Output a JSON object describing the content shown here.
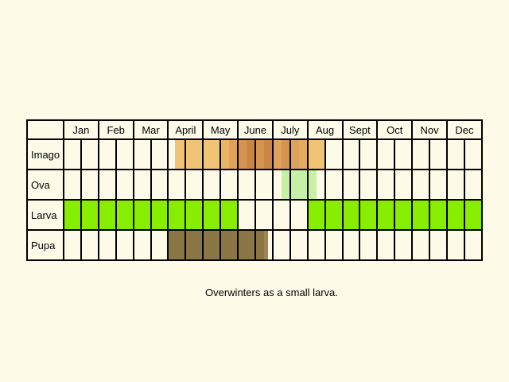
{
  "months": [
    "Jan",
    "Feb",
    "Mar",
    "April",
    "May",
    "June",
    "July",
    "Aug",
    "Sept",
    "Oct",
    "Nov",
    "Dec"
  ],
  "stages": [
    {
      "label": "Imago",
      "fills": [
        {
          "from": 6.4,
          "to": 7.0,
          "color": "#f0c474"
        },
        {
          "from": 7.0,
          "to": 9.0,
          "color": "#f0c474"
        },
        {
          "from": 9.0,
          "to": 9.5,
          "color": "#eab565"
        },
        {
          "from": 9.5,
          "to": 10.0,
          "color": "#dea25a"
        },
        {
          "from": 10.0,
          "to": 10.5,
          "color": "#d49450"
        },
        {
          "from": 10.5,
          "to": 11.0,
          "color": "#c98644"
        },
        {
          "from": 11.0,
          "to": 11.5,
          "color": "#d49450"
        },
        {
          "from": 11.5,
          "to": 12.0,
          "color": "#c98644"
        },
        {
          "from": 12.0,
          "to": 12.5,
          "color": "#dea25a"
        },
        {
          "from": 12.5,
          "to": 13.0,
          "color": "#d49450"
        },
        {
          "from": 13.0,
          "to": 13.5,
          "color": "#dea25a"
        },
        {
          "from": 13.5,
          "to": 14.0,
          "color": "#e4aa5f"
        },
        {
          "from": 14.0,
          "to": 15.0,
          "color": "#f0c474"
        }
      ]
    },
    {
      "label": "Ova",
      "fills": [
        {
          "from": 12.5,
          "to": 14.5,
          "color": "#c6f0a6"
        }
      ]
    },
    {
      "label": "Larva",
      "fills": [
        {
          "from": 0,
          "to": 10,
          "color": "#88ee00"
        },
        {
          "from": 14,
          "to": 24,
          "color": "#88ee00"
        }
      ]
    },
    {
      "label": "Pupa",
      "fills": [
        {
          "from": 6,
          "to": 11.5,
          "color": "#8b7646"
        },
        {
          "from": 11.5,
          "to": 11.75,
          "color": "#a08552"
        }
      ]
    }
  ],
  "note": "Overwinters as a small larva."
}
